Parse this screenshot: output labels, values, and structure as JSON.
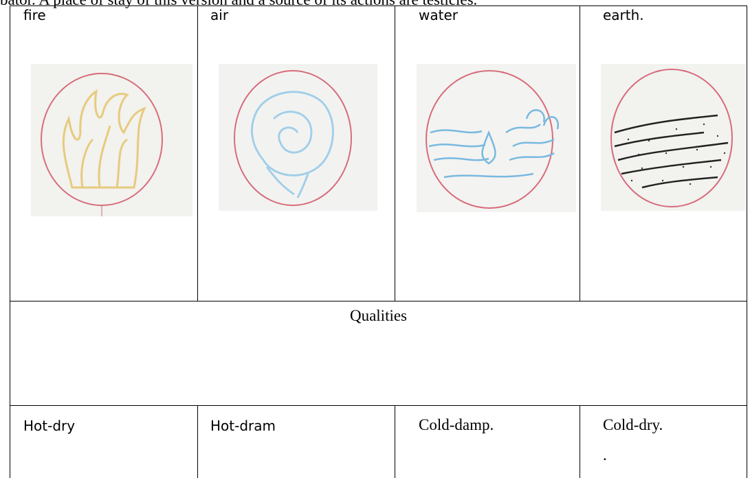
{
  "header_text": "bator. A place of stay of this version and a source of its actions are testicles.",
  "table": {
    "elements": [
      "fire",
      "air",
      "water",
      "earth."
    ],
    "qualities_label": "Qualities",
    "qualities": [
      "Hot-dry",
      "Hot-dram",
      "Cold-damp.",
      "Cold-dry."
    ],
    "extra_mark": "."
  }
}
